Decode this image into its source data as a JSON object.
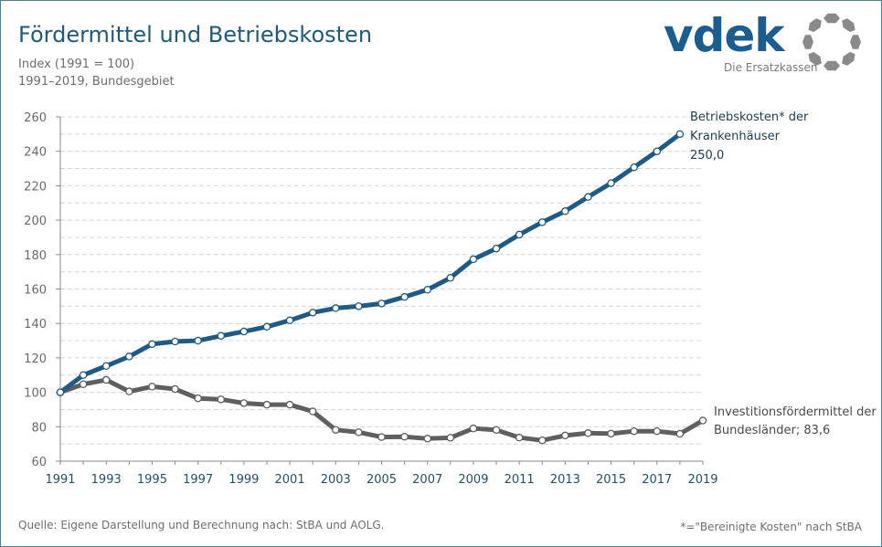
{
  "header": {
    "title": "Fördermittel und Betriebskosten",
    "subtitle_1": "Index (1991 = 100)",
    "subtitle_2": "1991–2019, Bundesgebiet"
  },
  "logo": {
    "wordmark": "vdek",
    "tagline": "Die Ersatzkassen",
    "brand_color": "#1c5d8f",
    "ring_color": "#8a8a8a",
    "icon": "vdek-ring-logo-icon"
  },
  "footer": {
    "source": "Quelle: Eigene Darstellung und Berechnung nach: StBA und AOLG.",
    "note": "*=\"Bereinigte Kosten\" nach StBA"
  },
  "chart_data": {
    "type": "line",
    "title": "Fördermittel und Betriebskosten",
    "subtitle": "Index (1991 = 100), 1991–2019, Bundesgebiet",
    "xlabel": "",
    "ylabel": "",
    "xlim": [
      1991,
      2019
    ],
    "ylim": [
      60,
      260
    ],
    "yticks": [
      60,
      80,
      100,
      120,
      140,
      160,
      180,
      200,
      220,
      240,
      260
    ],
    "y_minor_step": 10,
    "xticks": [
      1991,
      1993,
      1995,
      1997,
      1999,
      2001,
      2003,
      2005,
      2007,
      2009,
      2011,
      2013,
      2015,
      2017,
      2019
    ],
    "grid": "horizontal dashed",
    "legend": "end-of-line labels (right)",
    "series": [
      {
        "name": "Betriebskosten* der Krankenhäuser",
        "label_lines": [
          "Betriebskosten* der",
          "Krankenhäuser",
          "250,0"
        ],
        "color": "#1f5a85",
        "x": [
          1991,
          1992,
          1993,
          1994,
          1995,
          1996,
          1997,
          1998,
          1999,
          2000,
          2001,
          2002,
          2003,
          2004,
          2005,
          2006,
          2007,
          2008,
          2009,
          2010,
          2011,
          2012,
          2013,
          2014,
          2015,
          2016,
          2017,
          2018
        ],
        "values": [
          100,
          110,
          115.3,
          120.8,
          128.0,
          129.5,
          130.0,
          132.8,
          135.3,
          138.1,
          141.8,
          146.3,
          148.9,
          150.0,
          151.6,
          155.4,
          159.6,
          166.5,
          177.3,
          183.5,
          191.6,
          198.8,
          205.2,
          213.5,
          221.5,
          230.7,
          240.0,
          250.0
        ]
      },
      {
        "name": "Investitionsfördermittel der Bundesländer",
        "label_lines": [
          "Investitionsfördermittel der",
          "Bundesländer; 83,6"
        ],
        "color": "#5f5f5f",
        "x": [
          1991,
          1992,
          1993,
          1994,
          1995,
          1996,
          1997,
          1998,
          1999,
          2000,
          2001,
          2002,
          2003,
          2004,
          2005,
          2006,
          2007,
          2008,
          2009,
          2010,
          2011,
          2012,
          2013,
          2014,
          2015,
          2016,
          2017,
          2018,
          2019
        ],
        "values": [
          100,
          104.7,
          107.2,
          100.5,
          103.3,
          101.9,
          96.5,
          95.9,
          93.7,
          92.8,
          92.8,
          88.9,
          78.2,
          76.8,
          74.0,
          74.2,
          73.1,
          73.6,
          79.0,
          78.1,
          73.7,
          72.1,
          74.9,
          76.3,
          76.0,
          77.4,
          77.4,
          75.9,
          83.6
        ]
      }
    ]
  }
}
